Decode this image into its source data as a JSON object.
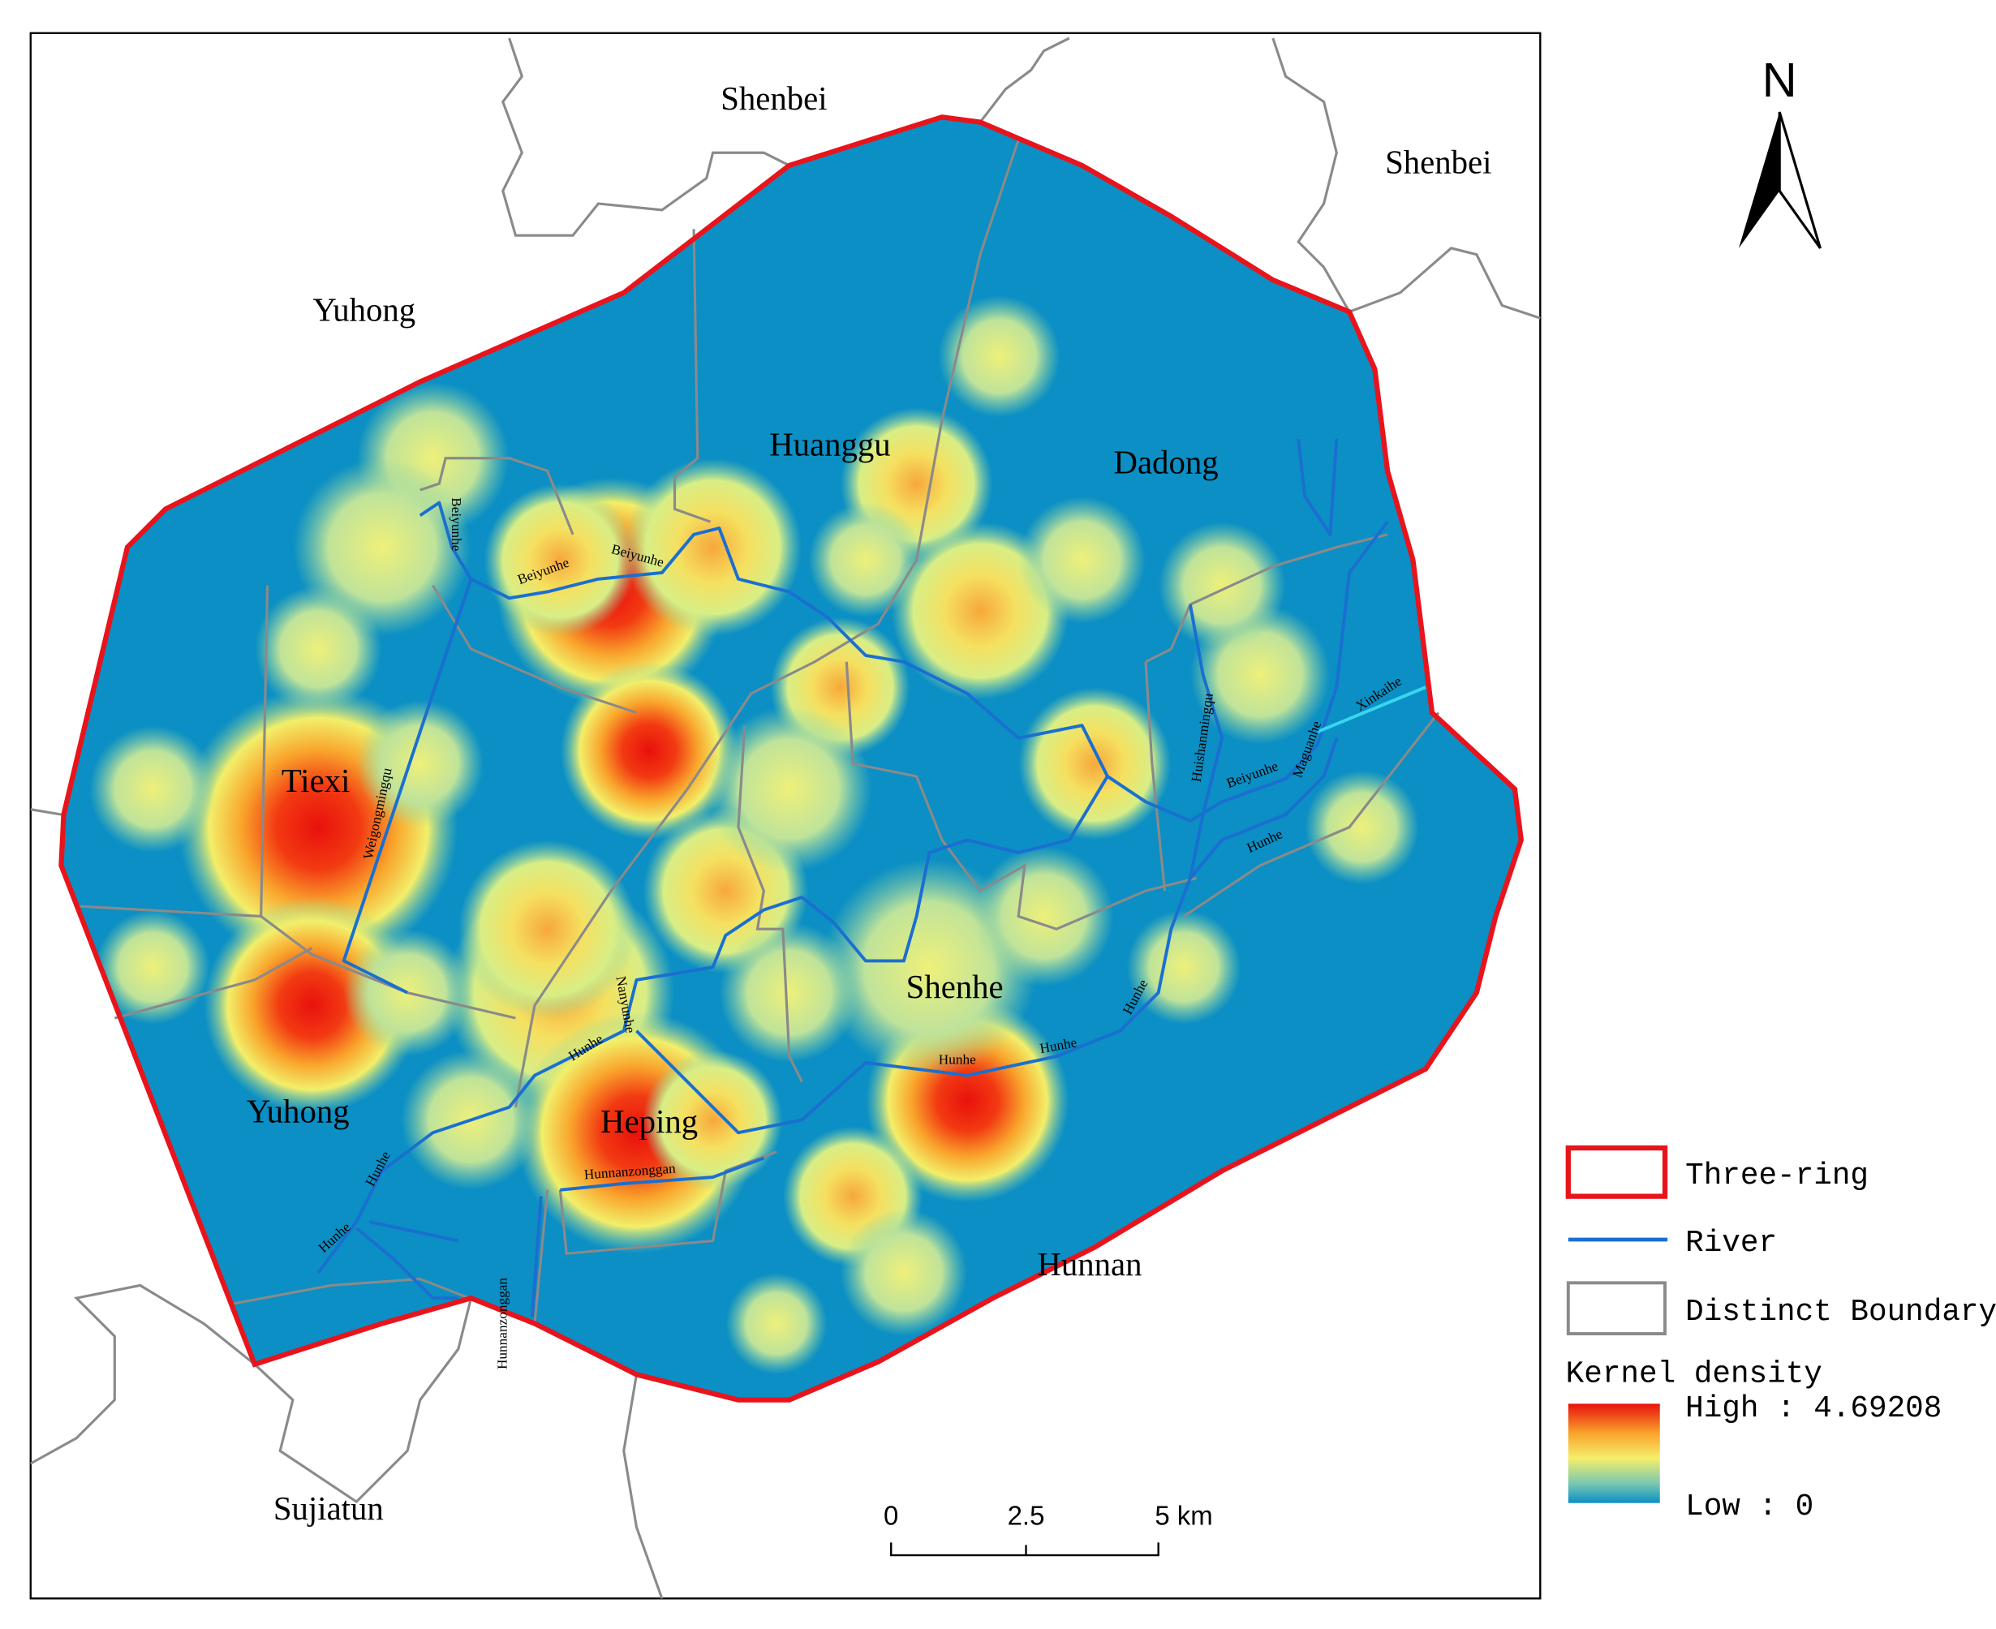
{
  "north": "N",
  "districts": [
    "Shenbei",
    "Shenbei",
    "Yuhong",
    "Huanggu",
    "Dadong",
    "Tiexi",
    "Shenhe",
    "Yuhong",
    "Heping",
    "Hunnan",
    "Sujiatun"
  ],
  "rivers": [
    "Beiyunhe",
    "Beiyunhe",
    "Beiyunhe",
    "Weigongmingqu",
    "Nanyunhe",
    "Hunhe",
    "Hunhe",
    "Hunhe",
    "Hunhe",
    "Hunhe",
    "Hunhe",
    "Hunnanzonggan",
    "Hunnanzonggan",
    "Huishanmingqu",
    "Beiyunhe",
    "Maguanhe",
    "Xinkaihe",
    "Hunhe"
  ],
  "legend": {
    "items": [
      "Three-ring",
      "River",
      "Distinct Boundary"
    ],
    "density_title": "Kernel density",
    "high": "High : 4.69208",
    "low": "Low : 0"
  },
  "scale_bar": [
    "0",
    "2.5",
    "5 km"
  ]
}
